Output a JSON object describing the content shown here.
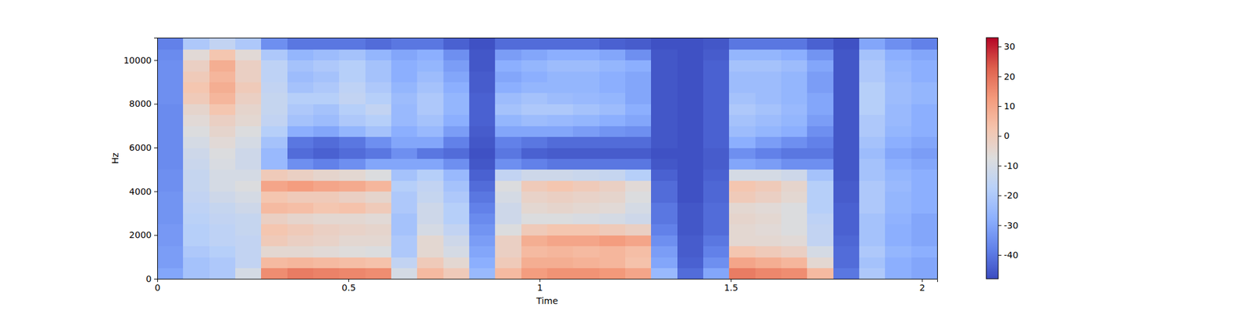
{
  "chart_data": {
    "type": "heatmap",
    "x_label": "Time",
    "y_label": "Hz",
    "xlim": [
      0,
      2.04
    ],
    "ylim": [
      0,
      11025
    ],
    "xticks": [
      0,
      0.5,
      1,
      1.5,
      2
    ],
    "yticks": [
      0,
      2000,
      4000,
      6000,
      8000,
      10000
    ],
    "x_edges": [
      0,
      0.068,
      0.136,
      0.204,
      0.272,
      0.34,
      0.408,
      0.476,
      0.544,
      0.612,
      0.68,
      0.748,
      0.816,
      0.884,
      0.952,
      1.02,
      1.088,
      1.156,
      1.224,
      1.292,
      1.36,
      1.428,
      1.496,
      1.564,
      1.632,
      1.7,
      1.768,
      1.836,
      1.904,
      1.972,
      2.04
    ],
    "y_edges": [
      0,
      500,
      1000,
      1500,
      2000,
      2500,
      3000,
      3500,
      4000,
      4500,
      5000,
      5500,
      6000,
      6500,
      7000,
      7500,
      8000,
      8500,
      9000,
      9500,
      10000,
      10500,
      11025
    ],
    "values": [
      [
        -30,
        -22,
        -20,
        -10,
        15,
        18,
        17,
        16,
        15,
        -10,
        5,
        0,
        -25,
        5,
        12,
        14,
        14,
        13,
        10,
        -25,
        -42,
        -30,
        18,
        16,
        15,
        5,
        -40,
        -20,
        -28,
        -30
      ],
      [
        -32,
        -22,
        -20,
        -15,
        5,
        6,
        5,
        4,
        3,
        -15,
        0,
        -5,
        -28,
        0,
        8,
        8,
        7,
        6,
        3,
        -30,
        -44,
        -35,
        10,
        8,
        6,
        -5,
        -42,
        -22,
        -28,
        -30
      ],
      [
        -32,
        -20,
        -18,
        -15,
        -5,
        -5,
        -6,
        -7,
        -8,
        -20,
        -5,
        -10,
        -30,
        -2,
        5,
        6,
        5,
        6,
        4,
        -32,
        -45,
        -38,
        2,
        0,
        -2,
        -10,
        -42,
        -20,
        -26,
        -28
      ],
      [
        -33,
        -18,
        -16,
        -15,
        0,
        -2,
        -3,
        -5,
        -5,
        -20,
        -5,
        -12,
        -32,
        -2,
        8,
        10,
        10,
        12,
        10,
        -35,
        -45,
        -40,
        -5,
        -5,
        -6,
        -15,
        -43,
        -22,
        -28,
        -30
      ],
      [
        -33,
        -18,
        -16,
        -14,
        2,
        0,
        -2,
        -3,
        -4,
        -22,
        -10,
        -15,
        -34,
        -8,
        0,
        2,
        2,
        0,
        -2,
        -38,
        -46,
        -42,
        -5,
        -6,
        -8,
        -15,
        -44,
        -22,
        -28,
        -30
      ],
      [
        -34,
        -17,
        -15,
        -14,
        -2,
        -4,
        -5,
        -5,
        -6,
        -22,
        -12,
        -18,
        -36,
        -12,
        -8,
        -8,
        -9,
        -10,
        -12,
        -40,
        -46,
        -42,
        -4,
        -5,
        -8,
        -16,
        -44,
        -22,
        -27,
        -30
      ],
      [
        -34,
        -16,
        -14,
        -12,
        5,
        4,
        2,
        3,
        0,
        -20,
        -12,
        -18,
        -38,
        -12,
        -5,
        -4,
        -5,
        -6,
        -10,
        -40,
        -46,
        -42,
        -5,
        -6,
        -8,
        -18,
        -44,
        -20,
        -26,
        -28
      ],
      [
        -34,
        -15,
        -12,
        -10,
        2,
        0,
        0,
        -2,
        -4,
        -20,
        -14,
        -20,
        -40,
        -10,
        -3,
        -2,
        -3,
        -4,
        -8,
        -42,
        -47,
        -43,
        0,
        -2,
        -5,
        -18,
        -45,
        -20,
        -26,
        -28
      ],
      [
        -35,
        -14,
        -10,
        -8,
        10,
        12,
        10,
        9,
        6,
        -18,
        -15,
        -22,
        -42,
        -8,
        0,
        2,
        0,
        -2,
        -6,
        -42,
        -47,
        -43,
        2,
        0,
        -4,
        -18,
        -45,
        -20,
        -25,
        -28
      ],
      [
        -35,
        -14,
        -10,
        -10,
        0,
        -2,
        -4,
        -5,
        -8,
        -22,
        -18,
        -25,
        -44,
        -15,
        -12,
        -12,
        -13,
        -14,
        -18,
        -44,
        -47,
        -44,
        -10,
        -10,
        -12,
        -22,
        -46,
        -22,
        -26,
        -28
      ],
      [
        -36,
        -13,
        -9,
        -12,
        -25,
        -35,
        -38,
        -35,
        -30,
        -30,
        -30,
        -35,
        -46,
        -35,
        -38,
        -40,
        -40,
        -40,
        -40,
        -46,
        -47,
        -45,
        -30,
        -32,
        -35,
        -35,
        -46,
        -22,
        -28,
        -30
      ],
      [
        -36,
        -12,
        -8,
        -12,
        -25,
        -42,
        -44,
        -42,
        -40,
        -35,
        -40,
        -42,
        -47,
        -40,
        -44,
        -45,
        -45,
        -45,
        -45,
        -47,
        -47,
        -45,
        -35,
        -38,
        -40,
        -40,
        -46,
        -24,
        -30,
        -32
      ],
      [
        -36,
        -10,
        -6,
        -10,
        -22,
        -40,
        -42,
        -40,
        -35,
        -30,
        -30,
        -38,
        -46,
        -38,
        -40,
        -42,
        -42,
        -42,
        -42,
        -46,
        -47,
        -44,
        -28,
        -32,
        -35,
        -38,
        -46,
        -22,
        -28,
        -30
      ],
      [
        -36,
        -8,
        -4,
        -8,
        -18,
        -28,
        -30,
        -26,
        -22,
        -28,
        -25,
        -32,
        -45,
        -30,
        -30,
        -30,
        -32,
        -34,
        -35,
        -46,
        -47,
        -44,
        -24,
        -26,
        -28,
        -35,
        -46,
        -20,
        -26,
        -28
      ],
      [
        -36,
        -6,
        -2,
        -5,
        -15,
        -22,
        -24,
        -20,
        -18,
        -25,
        -22,
        -28,
        -44,
        -26,
        -24,
        -25,
        -26,
        -28,
        -30,
        -46,
        -47,
        -44,
        -22,
        -24,
        -26,
        -32,
        -46,
        -20,
        -25,
        -28
      ],
      [
        -36,
        -4,
        2,
        -4,
        -14,
        -20,
        -22,
        -18,
        -15,
        -25,
        -20,
        -26,
        -44,
        -22,
        -20,
        -20,
        -22,
        -24,
        -28,
        -46,
        -47,
        -44,
        -20,
        -22,
        -25,
        -30,
        -46,
        -18,
        -25,
        -28
      ],
      [
        -35,
        0,
        6,
        -2,
        -14,
        -18,
        -18,
        -15,
        -18,
        -24,
        -20,
        -26,
        -44,
        -24,
        -22,
        -24,
        -25,
        -26,
        -30,
        -46,
        -47,
        -44,
        -22,
        -24,
        -26,
        -30,
        -46,
        -18,
        -24,
        -26
      ],
      [
        -35,
        2,
        8,
        0,
        -15,
        -22,
        -20,
        -16,
        -20,
        -26,
        -22,
        -28,
        -45,
        -28,
        -26,
        -26,
        -26,
        -28,
        -30,
        -46,
        -47,
        -44,
        -24,
        -24,
        -26,
        -32,
        -46,
        -18,
        -24,
        -26
      ],
      [
        -35,
        0,
        6,
        -2,
        -16,
        -24,
        -22,
        -18,
        -22,
        -28,
        -24,
        -30,
        -45,
        -30,
        -28,
        -26,
        -26,
        -28,
        -30,
        -46,
        -47,
        -44,
        -24,
        -24,
        -26,
        -32,
        -46,
        -20,
        -25,
        -28
      ],
      [
        -35,
        -2,
        8,
        -2,
        -16,
        -22,
        -20,
        -18,
        -22,
        -28,
        -26,
        -32,
        -46,
        -28,
        -26,
        -24,
        -24,
        -26,
        -28,
        -46,
        -47,
        -44,
        -22,
        -22,
        -24,
        -30,
        -46,
        -20,
        -26,
        -28
      ],
      [
        -36,
        -6,
        2,
        -6,
        -20,
        -26,
        -24,
        -22,
        -26,
        -30,
        -28,
        -35,
        -46,
        -32,
        -30,
        -28,
        -28,
        -30,
        -35,
        -46,
        -47,
        -45,
        -26,
        -26,
        -28,
        -34,
        -46,
        -22,
        -28,
        -30
      ],
      [
        -38,
        -20,
        -15,
        -20,
        -35,
        -40,
        -40,
        -40,
        -42,
        -40,
        -40,
        -44,
        -47,
        -42,
        -42,
        -42,
        -42,
        -44,
        -45,
        -47,
        -47,
        -46,
        -40,
        -40,
        -40,
        -44,
        -47,
        -30,
        -35,
        -38
      ]
    ],
    "colorbar": {
      "range": [
        -48,
        33
      ],
      "ticks": [
        -40,
        -30,
        -20,
        -10,
        0,
        10,
        20,
        30
      ]
    }
  }
}
